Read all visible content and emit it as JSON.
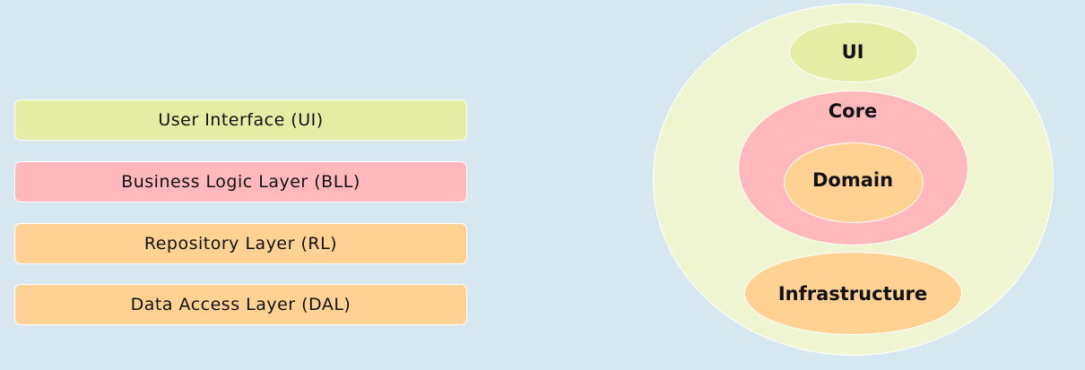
{
  "layers": [
    {
      "label": "User Interface (UI)",
      "color": "#e5eda4"
    },
    {
      "label": "Business Logic Layer (BLL)",
      "color": "#ffb8bb"
    },
    {
      "label": "Repository Layer (RL)",
      "color": "#ffd294"
    },
    {
      "label": "Data Access Layer (DAL)",
      "color": "#ffd294"
    }
  ],
  "onion": {
    "outer_color": "#f0f5d1",
    "ui": {
      "label": "UI",
      "color": "#e5eda4"
    },
    "core": {
      "label": "Core",
      "color": "#ffb8bb"
    },
    "domain": {
      "label": "Domain",
      "color": "#ffd294"
    },
    "infrastructure": {
      "label": "Infrastructure",
      "color": "#ffd294"
    }
  },
  "background_color": "#d6e7f0"
}
